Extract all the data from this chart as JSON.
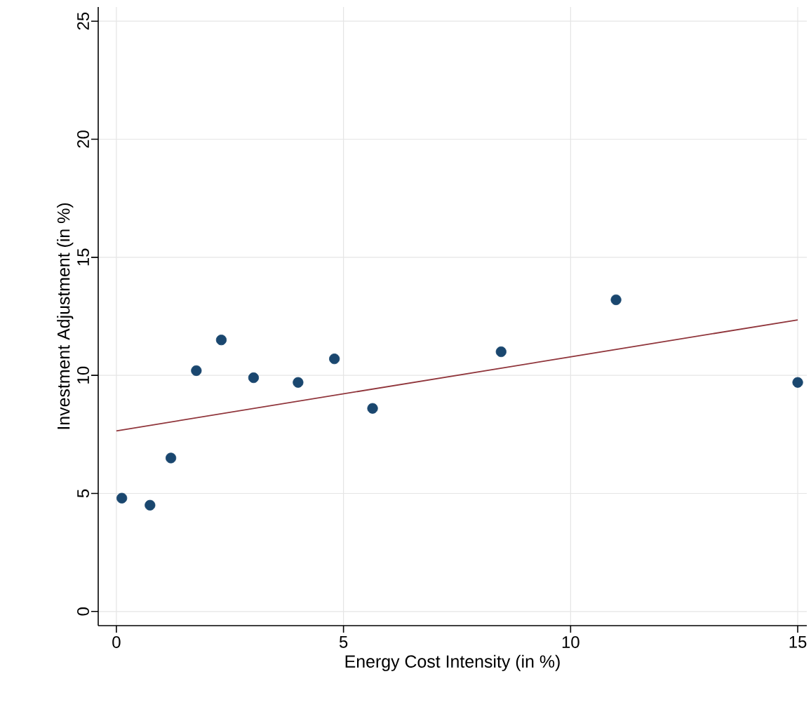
{
  "chart_data": {
    "type": "scatter",
    "xlabel": "Energy Cost Intensity (in %)",
    "ylabel": "Investment Adjustment (in %)",
    "xlim": [
      -0.4,
      15.2
    ],
    "ylim": [
      -0.6,
      25.6
    ],
    "xticks": [
      0,
      5,
      10,
      15
    ],
    "yticks": [
      0,
      5,
      10,
      15,
      20,
      25
    ],
    "grid": true,
    "marker": "circle",
    "series": [
      {
        "color": "#1a476f",
        "x": [
          0.12,
          0.74,
          1.2,
          1.76,
          2.31,
          3.02,
          4.0,
          4.8,
          5.64,
          8.47,
          11.0,
          15.0
        ],
        "values": [
          4.8,
          4.5,
          6.5,
          10.2,
          11.5,
          9.9,
          9.7,
          10.7,
          8.6,
          11.0,
          13.2,
          9.7
        ]
      },
      {
        "type": "line",
        "color": "#90353b",
        "marker": "none",
        "x": [
          0,
          15
        ],
        "values": [
          7.65,
          12.35
        ]
      }
    ]
  }
}
